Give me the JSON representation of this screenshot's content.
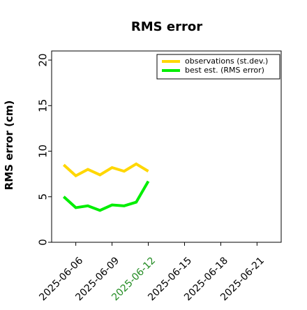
{
  "chart_data": {
    "type": "line",
    "title": "RMS error",
    "ylabel": "RMS error (cm)",
    "xlabel": "",
    "ylim": [
      0,
      21
    ],
    "xlim": [
      "2025-06-04",
      "2025-06-23"
    ],
    "yticks": [
      0,
      5,
      10,
      15,
      20
    ],
    "xticks": [
      "2025-06-06",
      "2025-06-09",
      "2025-06-12",
      "2025-06-15",
      "2025-06-18",
      "2025-06-21"
    ],
    "highlight_tick": "2025-06-12",
    "highlight_color": "#228b22",
    "grid": false,
    "legend_position": "top-right",
    "x": [
      "2025-06-05",
      "2025-06-06",
      "2025-06-07",
      "2025-06-08",
      "2025-06-09",
      "2025-06-10",
      "2025-06-11",
      "2025-06-12"
    ],
    "series": [
      {
        "name": "observations (st.dev.)",
        "color": "#ffd700",
        "values": [
          8.5,
          7.3,
          8.0,
          7.4,
          8.2,
          7.8,
          8.6,
          7.8
        ]
      },
      {
        "name": "best est. (RMS error)",
        "color": "#00ee00",
        "values": [
          5.0,
          3.8,
          4.0,
          3.5,
          4.1,
          4.0,
          4.4,
          6.7
        ]
      }
    ]
  }
}
